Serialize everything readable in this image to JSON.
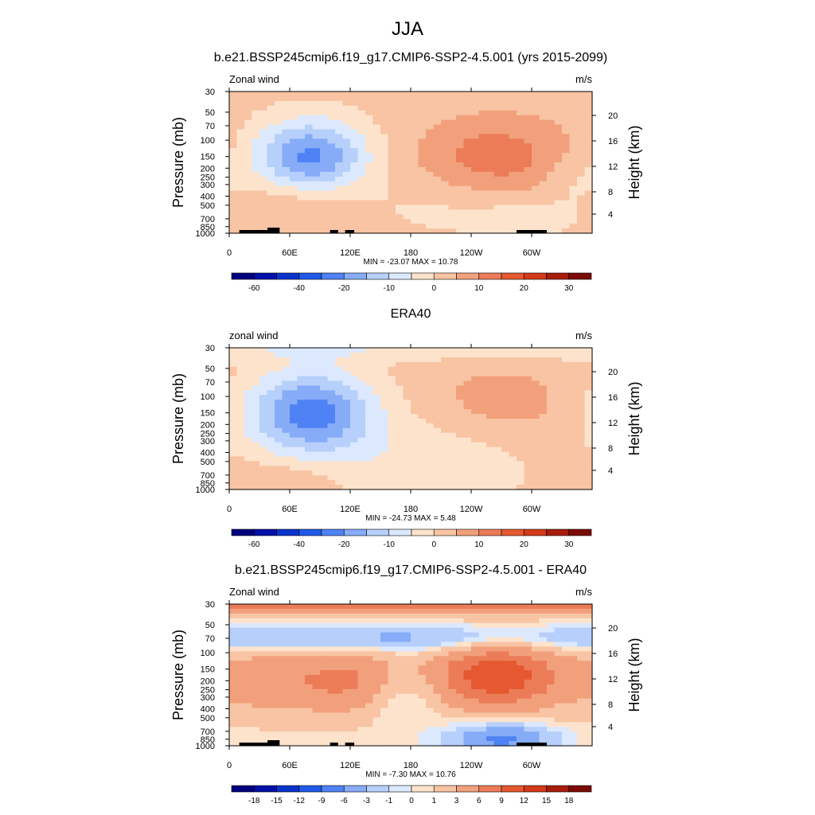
{
  "figure_title": "JJA",
  "colors": {
    "levels_blue": [
      "#00007f",
      "#0010a8",
      "#0a33cc",
      "#1f5ae8",
      "#4f82f4",
      "#86acf8",
      "#b6cffb",
      "#dbe8fd"
    ],
    "levels_red": [
      "#fde3cc",
      "#f8c4a3",
      "#f2a07c",
      "#ec7c58",
      "#e6582f",
      "#d43a1a",
      "#a81c0c",
      "#7a0b04"
    ],
    "land_mask": "#000000"
  },
  "chart_data": [
    {
      "type": "heatmap",
      "title": "b.e21.BSSP245cmip6.f19_g17.CMIP6-SSP2-4.5.001 (yrs 2015-2099)",
      "left_label": "Zonal wind",
      "units": "m/s",
      "ylabel": "Pressure (mb)",
      "ylabel_right": "Height (km)",
      "x_ticks": [
        "0",
        "60E",
        "120E",
        "180",
        "120W",
        "60W"
      ],
      "y_ticks": [
        "30",
        "50",
        "70",
        "100",
        "150",
        "200",
        "250",
        "300",
        "400",
        "500",
        "700",
        "850",
        "1000"
      ],
      "height_ticks": [
        "20",
        "16",
        "12",
        "8",
        "4"
      ],
      "stats": "MIN = -23.07  MAX =  10.78",
      "colorbar_labels": [
        "-60",
        "-40",
        "-20",
        "-10",
        "0",
        "10",
        "20",
        "30"
      ],
      "field": {
        "background": 2,
        "features": [
          {
            "lon": 80,
            "p": 150,
            "amp": -23.07,
            "wlon": 40,
            "wlogp": 0.28
          },
          {
            "lon": 200,
            "p": 500,
            "amp": -3,
            "wlon": 60,
            "wlogp": 0.25
          },
          {
            "lon": 290,
            "p": 700,
            "amp": -5,
            "wlon": 40,
            "wlogp": 0.12
          },
          {
            "lon": 340,
            "p": 300,
            "amp": -4,
            "wlon": 25,
            "wlogp": 0.22
          },
          {
            "lon": 265,
            "p": 150,
            "amp": 10.78,
            "wlon": 55,
            "wlogp": 0.3
          },
          {
            "lon": 70,
            "p": 500,
            "amp": 5,
            "wlon": 45,
            "wlogp": 0.2
          }
        ]
      }
    },
    {
      "type": "heatmap",
      "title": "ERA40",
      "left_label": "zonal wind",
      "units": "m/s",
      "ylabel": "Pressure (mb)",
      "ylabel_right": "Height (km)",
      "x_ticks": [
        "0",
        "60E",
        "120E",
        "180",
        "120W",
        "60W"
      ],
      "y_ticks": [
        "30",
        "50",
        "70",
        "100",
        "150",
        "200",
        "250",
        "300",
        "400",
        "500",
        "700",
        "850",
        "1000"
      ],
      "height_ticks": [
        "20",
        "16",
        "12",
        "8",
        "4"
      ],
      "stats": "MIN = -24.73  MAX =   5.48",
      "colorbar_labels": [
        "-60",
        "-40",
        "-20",
        "-10",
        "0",
        "10",
        "20",
        "30"
      ],
      "field": {
        "background": 2,
        "features": [
          {
            "lon": 80,
            "p": 150,
            "amp": -24.73,
            "wlon": 45,
            "wlogp": 0.32
          },
          {
            "lon": 180,
            "p": 30,
            "amp": -6,
            "wlon": 400,
            "wlogp": 0.1
          },
          {
            "lon": 200,
            "p": 500,
            "amp": -6,
            "wlon": 70,
            "wlogp": 0.35
          },
          {
            "lon": 270,
            "p": 120,
            "amp": 5.48,
            "wlon": 55,
            "wlogp": 0.3
          },
          {
            "lon": 60,
            "p": 700,
            "amp": 3,
            "wlon": 40,
            "wlogp": 0.15
          }
        ]
      }
    },
    {
      "type": "heatmap",
      "title": "b.e21.BSSP245cmip6.f19_g17.CMIP6-SSP2-4.5.001 - ERA40",
      "left_label": "Zonal wind",
      "units": "m/s",
      "ylabel": "Pressure (mb)",
      "ylabel_right": "Height (km)",
      "x_ticks": [
        "0",
        "60E",
        "120E",
        "180",
        "120W",
        "60W"
      ],
      "y_ticks": [
        "30",
        "50",
        "70",
        "100",
        "150",
        "200",
        "250",
        "300",
        "400",
        "500",
        "700",
        "850",
        "1000"
      ],
      "height_ticks": [
        "20",
        "16",
        "12",
        "8",
        "4"
      ],
      "stats": "MIN =  -7.30  MAX =  10.76",
      "colorbar_labels": [
        "-18",
        "-15",
        "-12",
        "-9",
        "-6",
        "-3",
        "-1",
        "0",
        "1",
        "3",
        "6",
        "9",
        "12",
        "15",
        "18"
      ],
      "field": {
        "background": 0.5,
        "features": [
          {
            "lon": 180,
            "p": 30,
            "amp": 8,
            "wlon": 400,
            "wlogp": 0.08
          },
          {
            "lon": 120,
            "p": 70,
            "amp": -4.5,
            "wlon": 200,
            "wlogp": 0.1
          },
          {
            "lon": 50,
            "p": 200,
            "amp": 5,
            "wlon": 45,
            "wlogp": 0.25
          },
          {
            "lon": 125,
            "p": 200,
            "amp": 5,
            "wlon": 30,
            "wlogp": 0.25
          },
          {
            "lon": 265,
            "p": 180,
            "amp": 10.76,
            "wlon": 45,
            "wlogp": 0.25
          },
          {
            "lon": 270,
            "p": 850,
            "amp": -7.3,
            "wlon": 35,
            "wlogp": 0.12
          },
          {
            "lon": 170,
            "p": 300,
            "amp": -2,
            "wlon": 30,
            "wlogp": 0.2
          }
        ]
      }
    }
  ]
}
